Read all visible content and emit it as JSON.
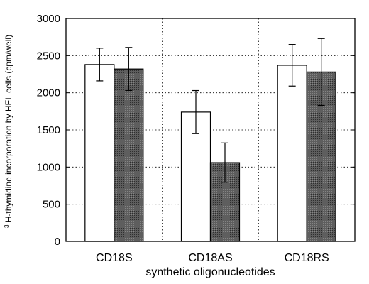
{
  "chart_data": {
    "type": "bar",
    "title": "",
    "xlabel": "synthetic oligonucleotides",
    "ylabel": {
      "superscript": "3",
      "text": " H-thymidine incorporation by HEL cells (cpm/well)"
    },
    "ylim": [
      0,
      3000
    ],
    "yticks": [
      0,
      500,
      1000,
      1500,
      2000,
      2500,
      3000
    ],
    "grid": "dotted gridlines at y ticks and between categories",
    "categories": [
      "CD18S",
      "CD18AS",
      "CD18RS"
    ],
    "series": [
      {
        "fill": "#ffffff",
        "values": [
          2380,
          1740,
          2370
        ],
        "errors": [
          220,
          290,
          280
        ]
      },
      {
        "fill": "#5a5a5a",
        "values": [
          2320,
          1060,
          2280
        ],
        "errors": [
          290,
          265,
          450
        ]
      }
    ],
    "legend": "none"
  }
}
